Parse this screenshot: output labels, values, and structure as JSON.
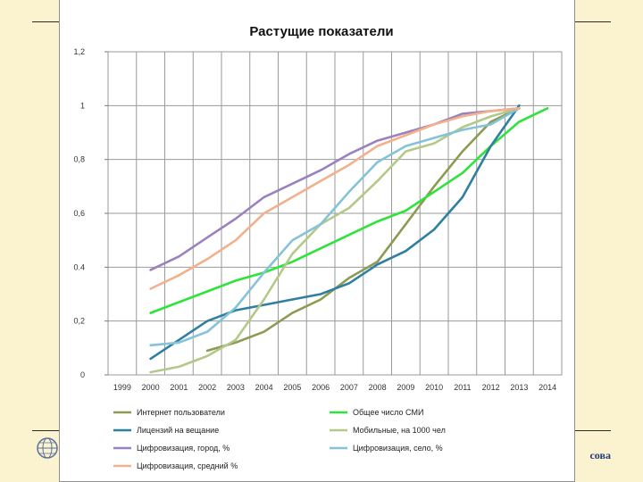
{
  "footer": {
    "text": "сова"
  },
  "chart_data": {
    "type": "line",
    "title": "Растущие показатели",
    "xlabel": "",
    "ylabel": "",
    "categories": [
      "1999",
      "2000",
      "2001",
      "2002",
      "2003",
      "2004",
      "2005",
      "2006",
      "2007",
      "2008",
      "2009",
      "2010",
      "2011",
      "2012",
      "2013",
      "2014"
    ],
    "ylim": [
      0,
      1.2
    ],
    "yticks": [
      0,
      0.2,
      0.4,
      0.6,
      0.8,
      1,
      1.2
    ],
    "ytick_labels": [
      "0",
      "0,2",
      "0.4",
      "0,6",
      "0,8",
      "1",
      "1,2"
    ],
    "grid": true,
    "legend_position": "bottom",
    "series": [
      {
        "name": "Интернет пользователи",
        "color": "#8c9b52",
        "values": [
          null,
          null,
          null,
          0.09,
          0.12,
          0.16,
          0.23,
          0.28,
          0.36,
          0.42,
          0.56,
          0.7,
          0.83,
          0.94,
          0.99,
          null
        ]
      },
      {
        "name": "Общее число СМИ",
        "color": "#2ee33a",
        "values": [
          null,
          0.23,
          0.27,
          0.31,
          0.35,
          0.38,
          0.42,
          0.47,
          0.52,
          0.57,
          0.61,
          0.68,
          0.75,
          0.85,
          0.94,
          0.99
        ]
      },
      {
        "name": "Лицензий на вещание",
        "color": "#2f7fa0",
        "values": [
          null,
          0.06,
          0.13,
          0.2,
          0.24,
          0.26,
          0.28,
          0.3,
          0.34,
          0.41,
          0.46,
          0.54,
          0.66,
          0.85,
          1.0,
          null
        ]
      },
      {
        "name": "Мобильные, на 1000 чел",
        "color": "#b3c98a",
        "values": [
          null,
          0.01,
          0.03,
          0.07,
          0.13,
          0.28,
          0.45,
          0.56,
          0.62,
          0.72,
          0.83,
          0.86,
          0.92,
          0.96,
          0.99,
          null
        ]
      },
      {
        "name": "Цифровизация, город, %",
        "color": "#9a82bf",
        "values": [
          null,
          0.39,
          0.44,
          0.51,
          0.58,
          0.66,
          0.71,
          0.76,
          0.82,
          0.87,
          0.9,
          0.93,
          0.97,
          0.98,
          0.99,
          null
        ]
      },
      {
        "name": "Цифровизация, село, %",
        "color": "#84c3d8",
        "values": [
          null,
          0.11,
          0.12,
          0.16,
          0.25,
          0.38,
          0.5,
          0.56,
          0.68,
          0.79,
          0.85,
          0.88,
          0.91,
          0.93,
          0.99,
          null
        ]
      },
      {
        "name": "Цифровизация, средний %",
        "color": "#f2b08c",
        "values": [
          null,
          0.32,
          0.37,
          0.43,
          0.5,
          0.6,
          0.66,
          0.72,
          0.78,
          0.85,
          0.89,
          0.93,
          0.96,
          0.98,
          0.99,
          null
        ]
      }
    ]
  }
}
